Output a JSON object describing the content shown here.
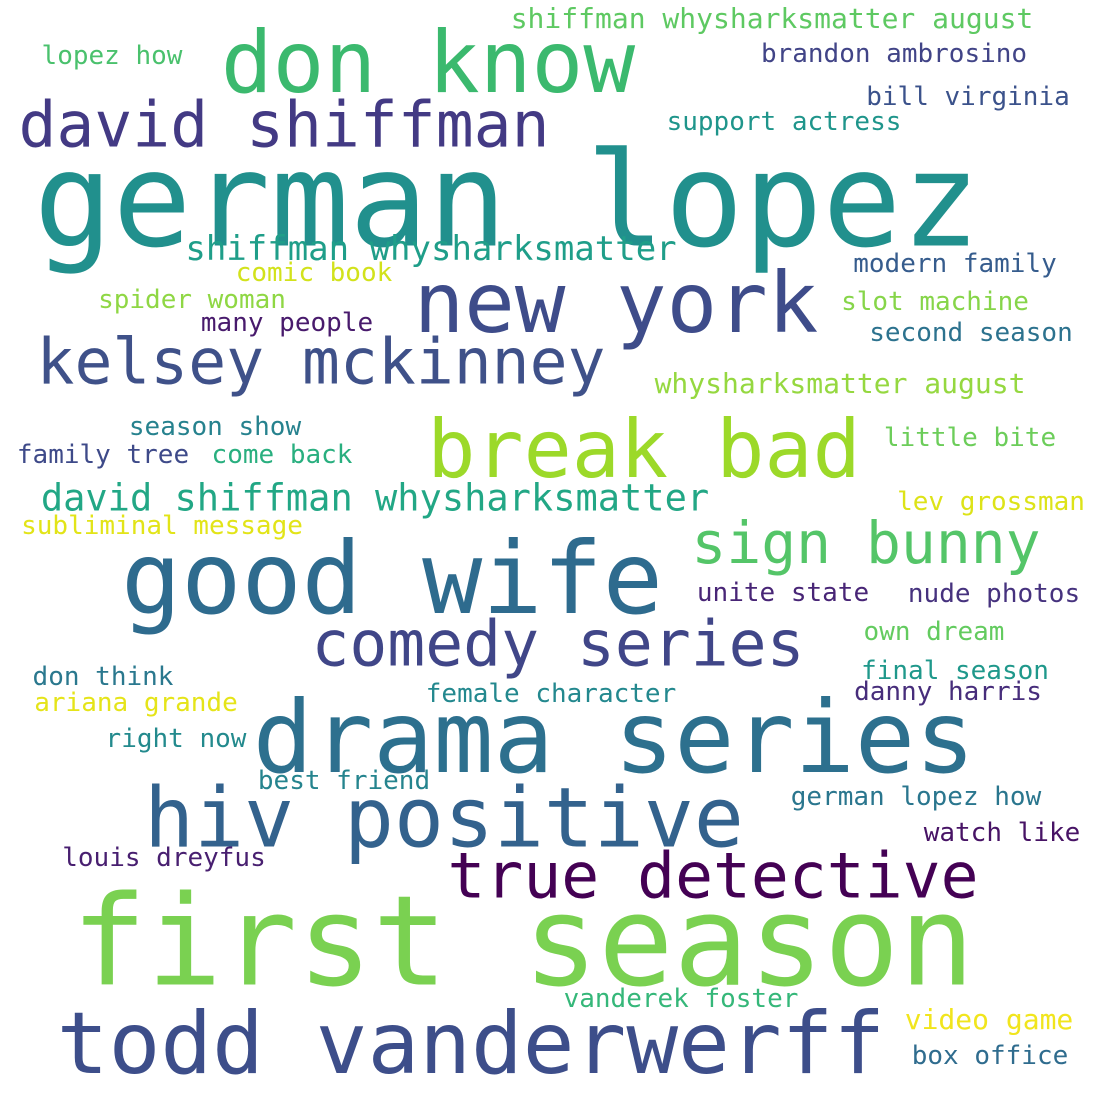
{
  "words": [
    {
      "text": "german lopez",
      "color": "#21908d"
    },
    {
      "text": "don know",
      "color": "#3bb96e"
    },
    {
      "text": "david shiffman",
      "color": "#433a84"
    },
    {
      "text": "new york",
      "color": "#3e4c8a"
    },
    {
      "text": "kelsey mckinney",
      "color": "#3f5189"
    },
    {
      "text": "break bad",
      "color": "#9cd929"
    },
    {
      "text": "good wife",
      "color": "#2e6b8e"
    },
    {
      "text": "drama series",
      "color": "#2d708e"
    },
    {
      "text": "first season",
      "color": "#7ad151"
    },
    {
      "text": "todd vanderwerff",
      "color": "#3d4e8a"
    },
    {
      "text": "hiv positive",
      "color": "#33628d"
    },
    {
      "text": "comedy series",
      "color": "#404688"
    },
    {
      "text": "true detective",
      "color": "#440154"
    },
    {
      "text": "sign bunny",
      "color": "#54c568"
    },
    {
      "text": "david shiffman whysharksmatter",
      "color": "#22a785"
    },
    {
      "text": "shiffman whysharksmatter",
      "color": "#1f9e89"
    },
    {
      "text": "shiffman whysharksmatter august",
      "color": "#5ec962"
    },
    {
      "text": "lopez how",
      "color": "#4ac16d"
    },
    {
      "text": "brandon ambrosino",
      "color": "#414487"
    },
    {
      "text": "bill virginia",
      "color": "#3b528b"
    },
    {
      "text": "support actress",
      "color": "#1f958b"
    },
    {
      "text": "comic book",
      "color": "#d2e21b"
    },
    {
      "text": "spider woman",
      "color": "#8fd744"
    },
    {
      "text": "many people",
      "color": "#481a6c"
    },
    {
      "text": "modern family",
      "color": "#365c8d"
    },
    {
      "text": "slot machine",
      "color": "#86d549"
    },
    {
      "text": "second season",
      "color": "#2c728e"
    },
    {
      "text": "whysharksmatter august",
      "color": "#95d840"
    },
    {
      "text": "season show",
      "color": "#26828e"
    },
    {
      "text": "family tree",
      "color": "#3e4a89"
    },
    {
      "text": "come back",
      "color": "#29af7f"
    },
    {
      "text": "little bite",
      "color": "#6ccd5a"
    },
    {
      "text": "lev grossman",
      "color": "#dde318"
    },
    {
      "text": "subliminal message",
      "color": "#e2e418"
    },
    {
      "text": "unite state",
      "color": "#482576"
    },
    {
      "text": "nude photos",
      "color": "#46327e"
    },
    {
      "text": "own dream",
      "color": "#63cb5f"
    },
    {
      "text": "don think",
      "color": "#2a788e"
    },
    {
      "text": "final season",
      "color": "#1f988b"
    },
    {
      "text": "ariana grande",
      "color": "#e5e419"
    },
    {
      "text": "female character",
      "color": "#23888e"
    },
    {
      "text": "danny harris",
      "color": "#472d7b"
    },
    {
      "text": "right now",
      "color": "#238a8d"
    },
    {
      "text": "best friend",
      "color": "#25848e"
    },
    {
      "text": "german lopez how",
      "color": "#2a768e"
    },
    {
      "text": "watch like",
      "color": "#471365"
    },
    {
      "text": "louis dreyfus",
      "color": "#481f70"
    },
    {
      "text": "vanderek foster",
      "color": "#35b779"
    },
    {
      "text": "video game",
      "color": "#f1e51d"
    },
    {
      "text": "box office",
      "color": "#2f6c8e"
    }
  ]
}
